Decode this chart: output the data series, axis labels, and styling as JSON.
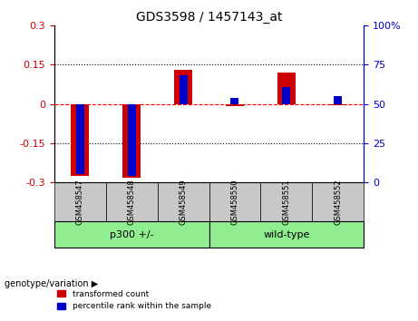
{
  "title": "GDS3598 / 1457143_at",
  "samples": [
    "GSM458547",
    "GSM458548",
    "GSM458549",
    "GSM458550",
    "GSM458551",
    "GSM458552"
  ],
  "transformed_count": [
    -0.275,
    -0.285,
    0.13,
    -0.01,
    0.12,
    -0.005
  ],
  "percentile_rank": [
    5,
    4,
    68,
    54,
    61,
    55
  ],
  "ylim_left": [
    -0.3,
    0.3
  ],
  "ylim_right": [
    0,
    100
  ],
  "yticks_left": [
    -0.3,
    -0.15,
    0,
    0.15,
    0.3
  ],
  "yticks_right": [
    0,
    25,
    50,
    75,
    100
  ],
  "ytick_right_labels": [
    "0",
    "25",
    "50",
    "75",
    "100%"
  ],
  "groups": [
    {
      "label": "p300 +/-",
      "indices": [
        0,
        1,
        2
      ],
      "color": "#90EE90"
    },
    {
      "label": "wild-type",
      "indices": [
        3,
        4,
        5
      ],
      "color": "#90EE90"
    }
  ],
  "bar_color_red": "#CC0000",
  "bar_color_blue": "#0000CC",
  "bar_width": 0.35,
  "grid_color": "#000000",
  "zero_line_color": "#FF0000",
  "bg_color_samples": "#C8C8C8",
  "legend_red_label": "transformed count",
  "legend_blue_label": "percentile rank within the sample",
  "genotype_label": "genotype/variation",
  "left_axis_color": "#CC0000",
  "right_axis_color": "#0000CC"
}
